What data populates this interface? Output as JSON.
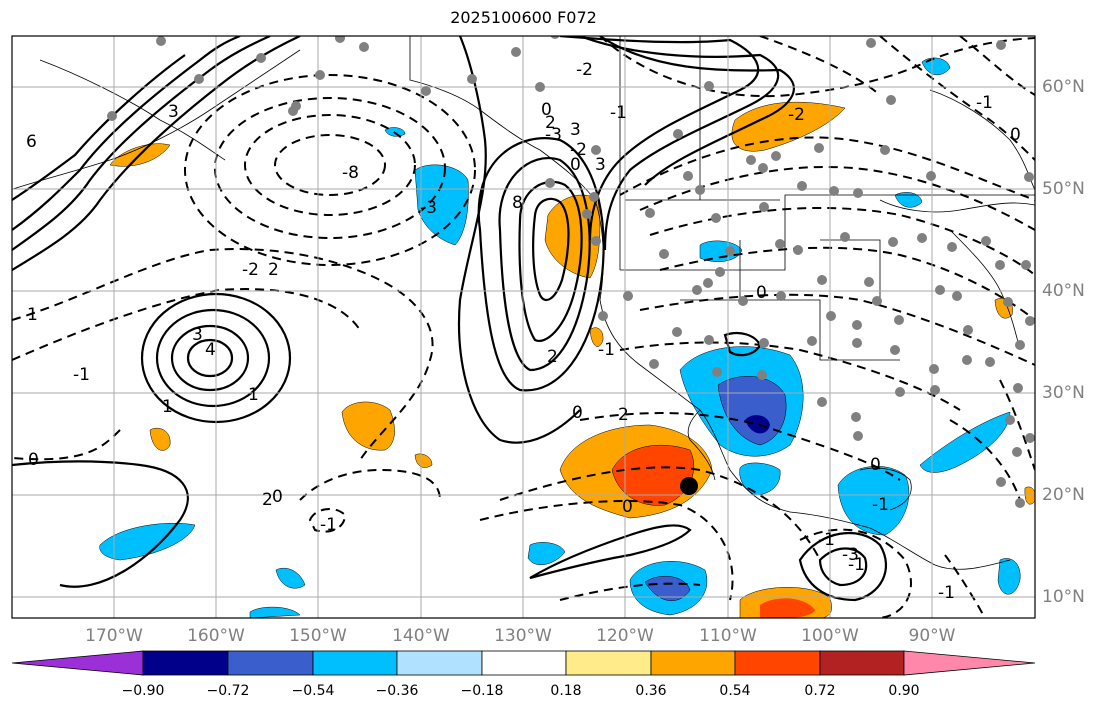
{
  "title": "2025100600 F072",
  "map": {
    "lon_range": [
      -180,
      -80
    ],
    "lat_range": [
      8,
      66
    ],
    "projection": "PlateCarree",
    "grid": true,
    "contour_labels": [
      "6",
      "3",
      "-3",
      "-8",
      "-2",
      "2",
      "-1",
      "1",
      "3",
      "4",
      "0",
      "-1",
      "2",
      "0",
      "-2",
      "0",
      "-1",
      "2",
      "-3",
      "3",
      "-2",
      "0",
      "3",
      "8",
      "2",
      "-1",
      "0",
      "1",
      "1",
      "2",
      "0",
      "-1",
      "-3",
      "-1",
      "0",
      "-1",
      "0",
      "-2",
      "-1",
      "-1",
      "0"
    ],
    "marker_big": {
      "lon": -113.5,
      "lat": 21
    }
  },
  "lon_ticks": [
    "170°W",
    "160°W",
    "150°W",
    "140°W",
    "130°W",
    "120°W",
    "110°W",
    "100°W",
    "90°W"
  ],
  "lat_ticks": [
    "60°N",
    "50°N",
    "40°N",
    "30°N",
    "20°N",
    "10°N"
  ],
  "colorbar": {
    "ticks": [
      "−0.90",
      "−0.72",
      "−0.54",
      "−0.36",
      "−0.18",
      "0.18",
      "0.36",
      "0.54",
      "0.72",
      "0.90"
    ],
    "colors": [
      "#9b30d9",
      "#00008b",
      "#3a5fcd",
      "#00bfff",
      "#b0e2ff",
      "#ffffff",
      "#ffeb8a",
      "#ffa500",
      "#ff4500",
      "#b22222",
      "#ff88aa"
    ]
  },
  "colors": {
    "grid": "#aaaaaa",
    "coast": "#000000",
    "dots": "#808080"
  }
}
